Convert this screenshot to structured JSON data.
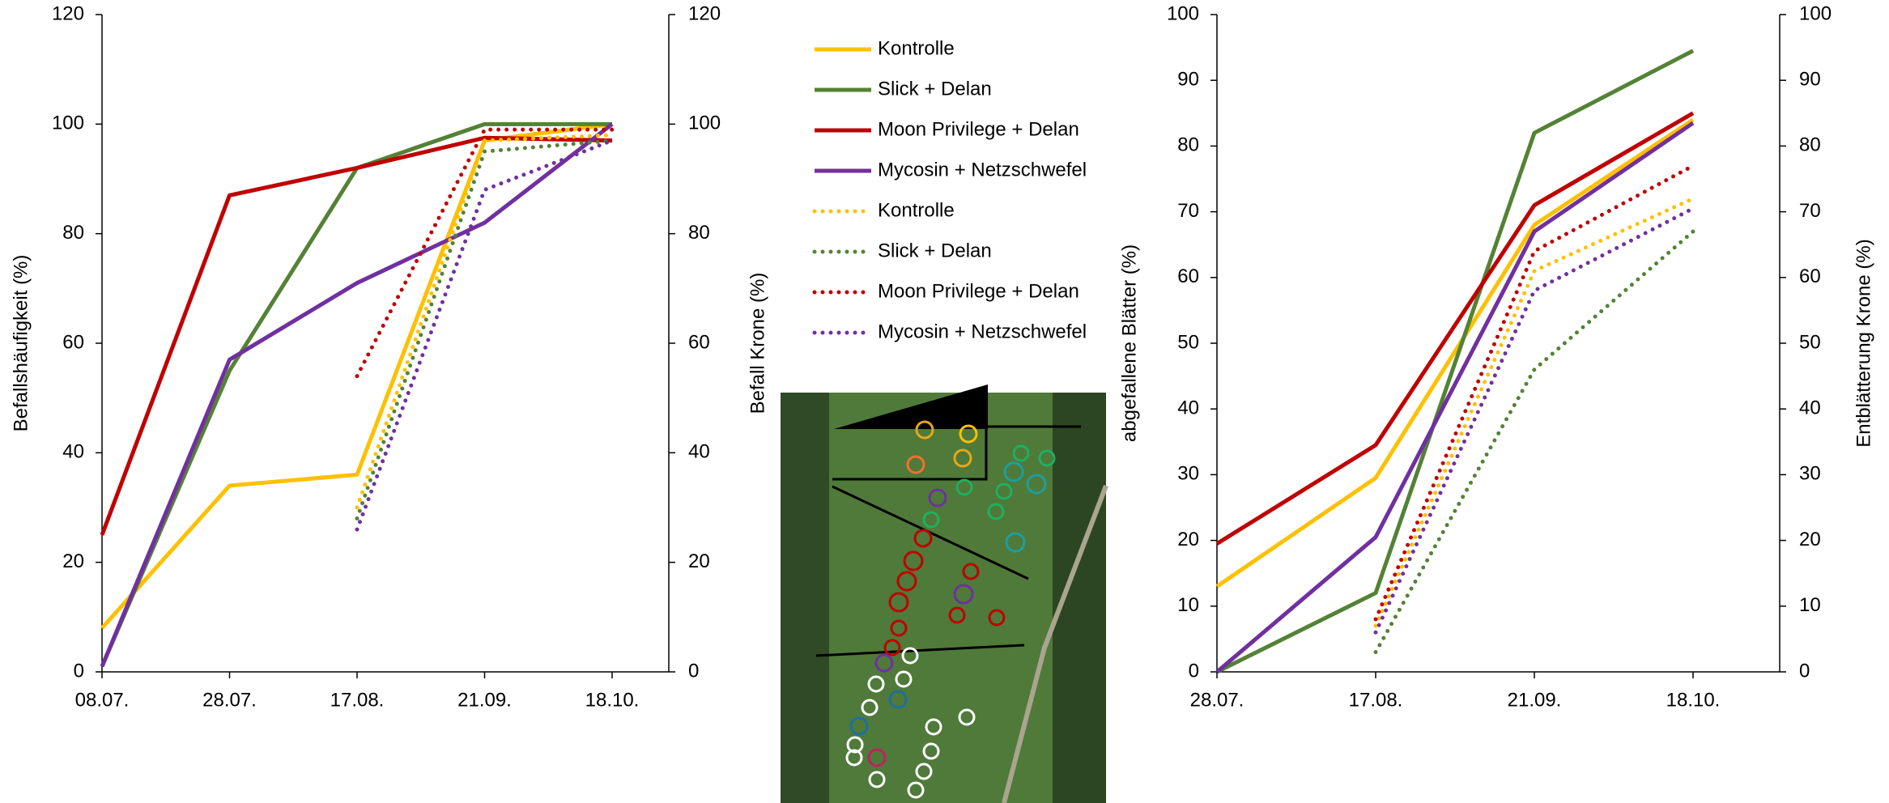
{
  "chart_data": [
    {
      "type": "line",
      "y_label": "Befallshäufigkeit (%)",
      "y2_label": "Befall Krone (%)",
      "categories": [
        "08.07.",
        "28.07.",
        "17.08.",
        "21.09.",
        "18.10."
      ],
      "ylim": [
        0,
        120
      ],
      "yticks": [
        0,
        20,
        40,
        60,
        80,
        100,
        120
      ],
      "y2lim": [
        0,
        120
      ],
      "y2ticks": [
        0,
        20,
        40,
        60,
        80,
        100,
        120
      ],
      "series": [
        {
          "name": "Kontrolle",
          "color": "#ffc000",
          "dashed": false,
          "values": [
            8,
            34,
            36,
            97,
            100
          ]
        },
        {
          "name": "Slick + Delan",
          "color": "#548235",
          "dashed": false,
          "values": [
            1,
            55,
            92,
            100,
            100
          ]
        },
        {
          "name": "Moon Privilege + Delan",
          "color": "#c00000",
          "dashed": false,
          "values": [
            25,
            87,
            92,
            97.5,
            97
          ]
        },
        {
          "name": "Mycosin + Netzschwefel",
          "color": "#7030a0",
          "dashed": false,
          "values": [
            1,
            57,
            71,
            82,
            100
          ]
        },
        {
          "name": "Kontrolle",
          "color": "#ffc000",
          "dashed": true,
          "axis": "y2",
          "values": [
            null,
            null,
            30,
            97,
            98
          ]
        },
        {
          "name": "Slick + Delan",
          "color": "#548235",
          "dashed": true,
          "axis": "y2",
          "values": [
            null,
            null,
            28,
            95,
            97
          ]
        },
        {
          "name": "Moon Privilege + Delan",
          "color": "#c00000",
          "dashed": true,
          "axis": "y2",
          "values": [
            null,
            null,
            54,
            99,
            99
          ]
        },
        {
          "name": "Mycosin + Netzschwefel",
          "color": "#7030a0",
          "dashed": true,
          "axis": "y2",
          "values": [
            null,
            null,
            26,
            88,
            97
          ]
        }
      ]
    },
    {
      "type": "line",
      "y_label": "abgefallene Blätter (%)",
      "y2_label": "Entblätterung Krone (%)",
      "categories": [
        "28.07.",
        "17.08.",
        "21.09.",
        "18.10."
      ],
      "ylim": [
        0,
        100
      ],
      "yticks": [
        0,
        10,
        20,
        30,
        40,
        50,
        60,
        70,
        80,
        90,
        100
      ],
      "y2lim": [
        0,
        100
      ],
      "y2ticks": [
        0,
        10,
        20,
        30,
        40,
        50,
        60,
        70,
        80,
        90,
        100
      ],
      "series": [
        {
          "color": "#ffc000",
          "dashed": false,
          "values": [
            13,
            29.5,
            68,
            84
          ]
        },
        {
          "color": "#548235",
          "dashed": false,
          "values": [
            0,
            12,
            82,
            94.5
          ]
        },
        {
          "color": "#c00000",
          "dashed": false,
          "values": [
            19.5,
            34.5,
            71,
            85
          ]
        },
        {
          "color": "#7030a0",
          "dashed": false,
          "values": [
            0,
            20.5,
            67,
            83.5
          ]
        },
        {
          "color": "#ffc000",
          "dashed": true,
          "axis": "y2",
          "values": [
            null,
            7,
            61,
            72
          ]
        },
        {
          "color": "#548235",
          "dashed": true,
          "axis": "y2",
          "values": [
            null,
            3,
            46,
            67
          ]
        },
        {
          "color": "#c00000",
          "dashed": true,
          "axis": "y2",
          "values": [
            null,
            8,
            64,
            77
          ]
        },
        {
          "color": "#7030a0",
          "dashed": true,
          "axis": "y2",
          "values": [
            null,
            6,
            58,
            70.5
          ]
        }
      ]
    }
  ]
}
